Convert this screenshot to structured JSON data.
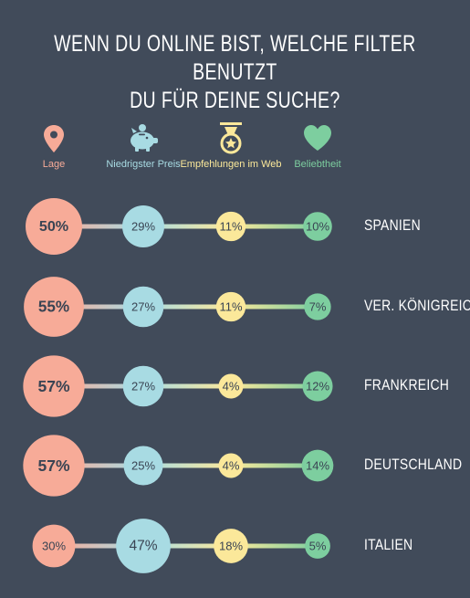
{
  "title": {
    "line1": "WENN DU ONLINE BIST, WELCHE FILTER BENUTZT",
    "line2": "DU FÜR DEINE SUCHE?"
  },
  "colors": {
    "background": "#414b5a",
    "lage": "#f7ab98",
    "preis": "#a8dbe3",
    "empfehlungen": "#fbe89a",
    "beliebtheit": "#7dce9f",
    "text_dark": "#3a4453",
    "text_white": "#ffffff"
  },
  "legend": [
    {
      "key": "lage",
      "label": "Lage",
      "icon": "map-pin-icon"
    },
    {
      "key": "preis",
      "label": "Niedrigster Preis",
      "icon": "piggy-bank-icon"
    },
    {
      "key": "empfehlungen",
      "label": "Empfehlungen im Web",
      "icon": "medal-icon"
    },
    {
      "key": "beliebtheit",
      "label": "Beliebtheit",
      "icon": "heart-icon"
    }
  ],
  "chart_data": {
    "type": "bubble-matrix",
    "title": "WENN DU ONLINE BIST, WELCHE FILTER BENUTZT DU FÜR DEINE SUCHE?",
    "unit": "%",
    "series": [
      {
        "name": "Lage",
        "values": [
          50,
          55,
          57,
          57,
          30
        ]
      },
      {
        "name": "Niedrigster Preis",
        "values": [
          29,
          27,
          27,
          25,
          47
        ]
      },
      {
        "name": "Empfehlungen im Web",
        "values": [
          11,
          11,
          4,
          4,
          18
        ]
      },
      {
        "name": "Beliebtheit",
        "values": [
          10,
          7,
          12,
          14,
          5
        ]
      }
    ],
    "categories": [
      "SPANIEN",
      "VER. KÖNIGREICH",
      "FRANKREICH",
      "DEUTSCHLAND",
      "ITALIEN"
    ],
    "legend_position": "top"
  }
}
